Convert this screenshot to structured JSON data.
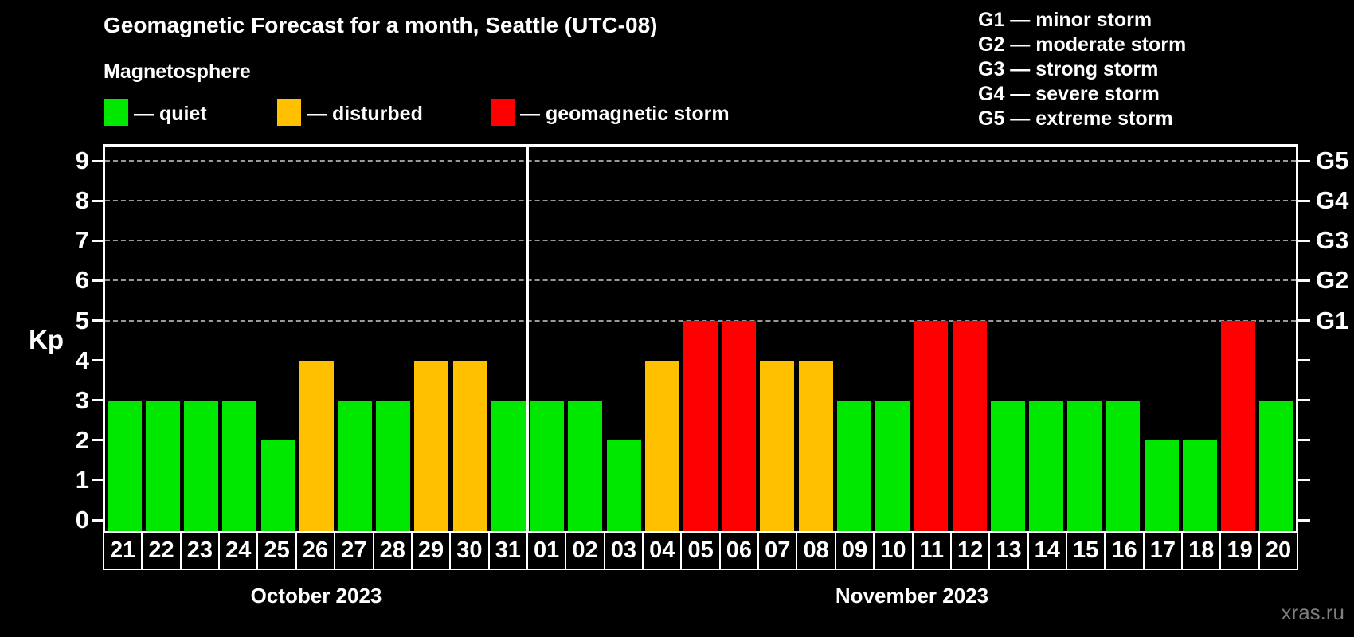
{
  "title": "Geomagnetic Forecast for a month, Seattle (UTC-08)",
  "subtitle": "Magnetosphere",
  "status_legend": {
    "items": [
      {
        "key": "quiet",
        "label": "— quiet",
        "color": "#00e800"
      },
      {
        "key": "disturbed",
        "label": "— disturbed",
        "color": "#ffc000"
      },
      {
        "key": "storm",
        "label": "— geomagnetic storm",
        "color": "#fe0000"
      }
    ]
  },
  "g_legend": {
    "lines": [
      "G1 — minor storm",
      "G2 — moderate storm",
      "G3 — strong storm",
      "G4 — severe storm",
      "G5 — extreme storm"
    ]
  },
  "watermark": "xras.ru",
  "chart_data": {
    "type": "bar",
    "title": "Geomagnetic Forecast for a month, Seattle (UTC-08)",
    "ylabel": "Kp",
    "ylim": [
      0,
      9
    ],
    "y_ticks": [
      0,
      1,
      2,
      3,
      4,
      5,
      6,
      7,
      8,
      9
    ],
    "gridlines_at": [
      5,
      6,
      7,
      8,
      9
    ],
    "grid": "dashed, only at Kp 5-9",
    "legend_position": "top",
    "right_axis_labels": [
      {
        "kp": 5,
        "label": "G1"
      },
      {
        "kp": 6,
        "label": "G2"
      },
      {
        "kp": 7,
        "label": "G3"
      },
      {
        "kp": 8,
        "label": "G4"
      },
      {
        "kp": 9,
        "label": "G5"
      }
    ],
    "status_colors": {
      "quiet": "#00e800",
      "disturbed": "#ffc000",
      "storm": "#fe0000"
    },
    "months": [
      {
        "label": "October 2023",
        "days": [
          {
            "day": "21",
            "kp": 3,
            "status": "quiet"
          },
          {
            "day": "22",
            "kp": 3,
            "status": "quiet"
          },
          {
            "day": "23",
            "kp": 3,
            "status": "quiet"
          },
          {
            "day": "24",
            "kp": 3,
            "status": "quiet"
          },
          {
            "day": "25",
            "kp": 2,
            "status": "quiet"
          },
          {
            "day": "26",
            "kp": 4,
            "status": "disturbed"
          },
          {
            "day": "27",
            "kp": 3,
            "status": "quiet"
          },
          {
            "day": "28",
            "kp": 3,
            "status": "quiet"
          },
          {
            "day": "29",
            "kp": 4,
            "status": "disturbed"
          },
          {
            "day": "30",
            "kp": 4,
            "status": "disturbed"
          },
          {
            "day": "31",
            "kp": 3,
            "status": "quiet"
          }
        ]
      },
      {
        "label": "November 2023",
        "days": [
          {
            "day": "01",
            "kp": 3,
            "status": "quiet"
          },
          {
            "day": "02",
            "kp": 3,
            "status": "quiet"
          },
          {
            "day": "03",
            "kp": 2,
            "status": "quiet"
          },
          {
            "day": "04",
            "kp": 4,
            "status": "disturbed"
          },
          {
            "day": "05",
            "kp": 5,
            "status": "storm"
          },
          {
            "day": "06",
            "kp": 5,
            "status": "storm"
          },
          {
            "day": "07",
            "kp": 4,
            "status": "disturbed"
          },
          {
            "day": "08",
            "kp": 4,
            "status": "disturbed"
          },
          {
            "day": "09",
            "kp": 3,
            "status": "quiet"
          },
          {
            "day": "10",
            "kp": 3,
            "status": "quiet"
          },
          {
            "day": "11",
            "kp": 5,
            "status": "storm"
          },
          {
            "day": "12",
            "kp": 5,
            "status": "storm"
          },
          {
            "day": "13",
            "kp": 3,
            "status": "quiet"
          },
          {
            "day": "14",
            "kp": 3,
            "status": "quiet"
          },
          {
            "day": "15",
            "kp": 3,
            "status": "quiet"
          },
          {
            "day": "16",
            "kp": 3,
            "status": "quiet"
          },
          {
            "day": "17",
            "kp": 2,
            "status": "quiet"
          },
          {
            "day": "18",
            "kp": 2,
            "status": "quiet"
          },
          {
            "day": "19",
            "kp": 5,
            "status": "storm"
          },
          {
            "day": "20",
            "kp": 3,
            "status": "quiet"
          }
        ]
      }
    ]
  }
}
